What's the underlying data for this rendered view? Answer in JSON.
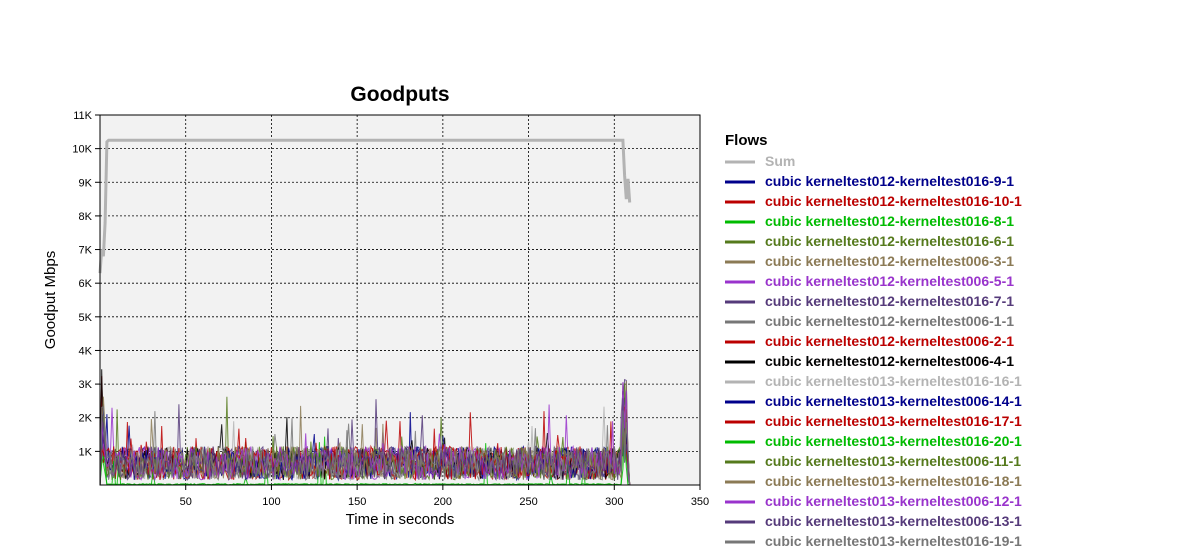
{
  "chart_data": {
    "type": "line",
    "title": "Goodputs",
    "xlabel": "Time in seconds",
    "ylabel": "Goodput Mbps",
    "xlim": [
      0,
      350
    ],
    "ylim": [
      0,
      11000
    ],
    "x_ticks": [
      50,
      100,
      150,
      200,
      250,
      300,
      350
    ],
    "x_tick_labels": [
      "50",
      "100",
      "150",
      "200",
      "250",
      "300",
      "350"
    ],
    "y_ticks": [
      1000,
      2000,
      3000,
      4000,
      5000,
      6000,
      7000,
      8000,
      9000,
      10000,
      11000
    ],
    "y_tick_labels": [
      "1K",
      "2K",
      "3K",
      "4K",
      "5K",
      "6K",
      "7K",
      "8K",
      "9K",
      "10K",
      "11K"
    ],
    "grid": true,
    "legend_title": "Flows",
    "legend_position": "right",
    "series": [
      {
        "name": "Sum",
        "color": "#b3b3b3",
        "x": [
          0,
          1,
          2,
          3,
          4,
          5,
          8,
          50,
          100,
          150,
          200,
          250,
          300,
          305,
          306,
          307,
          308,
          309
        ],
        "values": [
          6300,
          7000,
          6800,
          7800,
          10200,
          10250,
          10250,
          10250,
          10250,
          10250,
          10250,
          10250,
          10250,
          10250,
          9200,
          8500,
          9100,
          8400
        ]
      },
      {
        "name": "cubic kerneltest012-kerneltest016-9-1",
        "color": "#00008b",
        "level": 650,
        "spread": 500
      },
      {
        "name": "cubic kerneltest012-kerneltest016-10-1",
        "color": "#bb0000",
        "level": 650,
        "spread": 500
      },
      {
        "name": "cubic kerneltest012-kerneltest016-8-1",
        "color": "#00bb00",
        "level": 20,
        "spread": 20
      },
      {
        "name": "cubic kerneltest012-kerneltest016-6-1",
        "color": "#557a1c",
        "level": 650,
        "spread": 500
      },
      {
        "name": "cubic kerneltest012-kerneltest006-3-1",
        "color": "#8b7a55",
        "level": 650,
        "spread": 500
      },
      {
        "name": "cubic kerneltest012-kerneltest006-5-1",
        "color": "#9933cc",
        "level": 650,
        "spread": 500
      },
      {
        "name": "cubic kerneltest012-kerneltest016-7-1",
        "color": "#553a7a",
        "level": 650,
        "spread": 500
      },
      {
        "name": "cubic kerneltest012-kerneltest006-1-1",
        "color": "#777777",
        "level": 650,
        "spread": 500
      },
      {
        "name": "cubic kerneltest012-kerneltest006-2-1",
        "color": "#bb0000",
        "level": 650,
        "spread": 500
      },
      {
        "name": "cubic kerneltest012-kerneltest006-4-1",
        "color": "#000000",
        "level": 650,
        "spread": 500
      },
      {
        "name": "cubic kerneltest013-kerneltest016-16-1",
        "color": "#b3b3b3",
        "level": 650,
        "spread": 500
      },
      {
        "name": "cubic kerneltest013-kerneltest006-14-1",
        "color": "#00008b",
        "level": 650,
        "spread": 500
      },
      {
        "name": "cubic kerneltest013-kerneltest016-17-1",
        "color": "#bb0000",
        "level": 650,
        "spread": 500
      },
      {
        "name": "cubic kerneltest013-kerneltest016-20-1",
        "color": "#00bb00",
        "level": 20,
        "spread": 20
      },
      {
        "name": "cubic kerneltest013-kerneltest006-11-1",
        "color": "#557a1c",
        "level": 650,
        "spread": 500
      },
      {
        "name": "cubic kerneltest013-kerneltest016-18-1",
        "color": "#8b7a55",
        "level": 650,
        "spread": 500
      },
      {
        "name": "cubic kerneltest013-kerneltest006-12-1",
        "color": "#9933cc",
        "level": 650,
        "spread": 500
      },
      {
        "name": "cubic kerneltest013-kerneltest006-13-1",
        "color": "#553a7a",
        "level": 650,
        "spread": 500
      },
      {
        "name": "cubic kerneltest013-kerneltest016-19-1",
        "color": "#777777",
        "level": 650,
        "spread": 500
      }
    ]
  }
}
